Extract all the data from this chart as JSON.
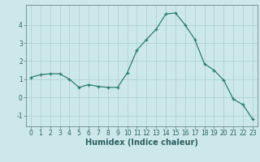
{
  "x": [
    0,
    1,
    2,
    3,
    4,
    5,
    6,
    7,
    8,
    9,
    10,
    11,
    12,
    13,
    14,
    15,
    16,
    17,
    18,
    19,
    20,
    21,
    22,
    23
  ],
  "y": [
    1.1,
    1.25,
    1.3,
    1.3,
    1.0,
    0.55,
    0.7,
    0.6,
    0.55,
    0.55,
    1.35,
    2.6,
    3.2,
    3.75,
    4.6,
    4.65,
    4.0,
    3.2,
    1.85,
    1.5,
    0.95,
    -0.1,
    -0.4,
    -1.2
  ],
  "line_color": "#2e7d6e",
  "marker": "+",
  "marker_size": 3,
  "bg_color": "#cce8ea",
  "grid_color": "#aacdd0",
  "xlabel": "Humidex (Indice chaleur)",
  "xlim": [
    -0.5,
    23.5
  ],
  "ylim": [
    -1.6,
    5.1
  ],
  "yticks": [
    -1,
    0,
    1,
    2,
    3,
    4
  ],
  "xticks": [
    0,
    1,
    2,
    3,
    4,
    5,
    6,
    7,
    8,
    9,
    10,
    11,
    12,
    13,
    14,
    15,
    16,
    17,
    18,
    19,
    20,
    21,
    22,
    23
  ],
  "tick_fontsize": 5.5,
  "xlabel_fontsize": 7,
  "linewidth": 0.9,
  "marker_edge_width": 0.9
}
